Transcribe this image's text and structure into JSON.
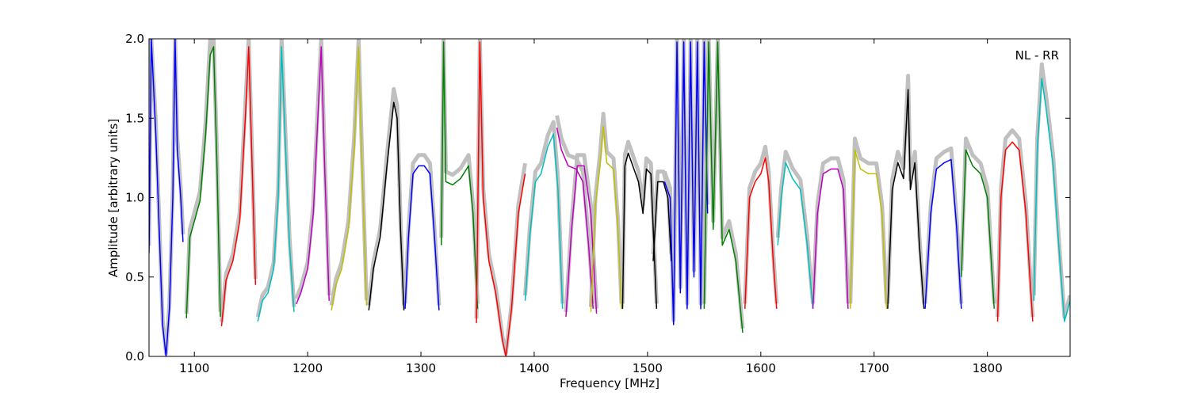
{
  "chart_data": {
    "type": "line",
    "xlabel": "Frequency [MHz]",
    "ylabel": "Amplitude [arbitrary units]",
    "xlim": [
      1060,
      1873
    ],
    "ylim": [
      0.0,
      2.0
    ],
    "x_ticks": [
      1100,
      1200,
      1300,
      1400,
      1500,
      1600,
      1700,
      1800
    ],
    "y_ticks": [
      0.0,
      0.5,
      1.0,
      1.5,
      2.0
    ],
    "y_tick_labels": [
      "0.0",
      "0.5",
      "1.0",
      "1.5",
      "2.0"
    ],
    "annotation": "NL - RR",
    "annotation_position": "top-right",
    "grid": false,
    "background_color": "#c0c0c0",
    "band_colors": [
      "#0000ff",
      "#008000",
      "#ff0000",
      "#00bfbf",
      "#bf00bf",
      "#bfbf00",
      "#000000"
    ],
    "bands": [
      {
        "color": "#0000ff",
        "points": [
          [
            1060,
            0.65
          ],
          [
            1062,
            2.0
          ],
          [
            1066,
            1.4
          ],
          [
            1069,
            0.8
          ],
          [
            1072,
            0.2
          ],
          [
            1075,
            0.0
          ],
          [
            1078,
            0.3
          ],
          [
            1081,
            1.0
          ],
          [
            1083,
            2.0
          ],
          [
            1085,
            1.3
          ],
          [
            1088,
            1.0
          ],
          [
            1090,
            0.72
          ]
        ]
      },
      {
        "color": "#008000",
        "points": [
          [
            1093,
            0.24
          ],
          [
            1096,
            0.75
          ],
          [
            1100,
            0.85
          ],
          [
            1105,
            0.98
          ],
          [
            1110,
            1.4
          ],
          [
            1114,
            1.9
          ],
          [
            1117,
            1.95
          ],
          [
            1120,
            1.2
          ],
          [
            1123,
            0.25
          ]
        ]
      },
      {
        "color": "#ff0000",
        "points": [
          [
            1124,
            0.19
          ],
          [
            1128,
            0.48
          ],
          [
            1134,
            0.6
          ],
          [
            1140,
            0.85
          ],
          [
            1145,
            1.5
          ],
          [
            1148,
            1.95
          ],
          [
            1151,
            1.2
          ],
          [
            1154,
            0.45
          ]
        ]
      },
      {
        "color": "#00bfbf",
        "points": [
          [
            1156,
            0.22
          ],
          [
            1160,
            0.35
          ],
          [
            1165,
            0.4
          ],
          [
            1170,
            0.55
          ],
          [
            1174,
            1.0
          ],
          [
            1177,
            1.95
          ],
          [
            1180,
            1.4
          ],
          [
            1184,
            0.7
          ],
          [
            1188,
            0.28
          ]
        ]
      },
      {
        "color": "#bf00bf",
        "points": [
          [
            1190,
            0.33
          ],
          [
            1194,
            0.4
          ],
          [
            1200,
            0.55
          ],
          [
            1205,
            0.9
          ],
          [
            1209,
            1.5
          ],
          [
            1212,
            1.95
          ],
          [
            1215,
            1.2
          ],
          [
            1219,
            0.35
          ]
        ]
      },
      {
        "color": "#bfbf00",
        "points": [
          [
            1221,
            0.29
          ],
          [
            1225,
            0.45
          ],
          [
            1230,
            0.55
          ],
          [
            1236,
            0.8
          ],
          [
            1241,
            1.3
          ],
          [
            1245,
            1.95
          ],
          [
            1248,
            1.2
          ],
          [
            1252,
            0.32
          ]
        ]
      },
      {
        "color": "#000000",
        "points": [
          [
            1254,
            0.29
          ],
          [
            1258,
            0.55
          ],
          [
            1264,
            0.75
          ],
          [
            1270,
            1.2
          ],
          [
            1276,
            1.6
          ],
          [
            1279,
            1.5
          ],
          [
            1282,
            0.8
          ],
          [
            1285,
            0.29
          ]
        ]
      },
      {
        "color": "#0000ff",
        "points": [
          [
            1286,
            0.3
          ],
          [
            1289,
            0.75
          ],
          [
            1293,
            1.15
          ],
          [
            1298,
            1.2
          ],
          [
            1303,
            1.2
          ],
          [
            1308,
            1.15
          ],
          [
            1312,
            0.75
          ],
          [
            1316,
            0.29
          ]
        ]
      },
      {
        "color": "#008000",
        "points": [
          [
            1318,
            0.7
          ],
          [
            1320,
            1.98
          ],
          [
            1322,
            1.1
          ],
          [
            1328,
            1.08
          ],
          [
            1335,
            1.12
          ],
          [
            1342,
            1.2
          ],
          [
            1346,
            0.9
          ],
          [
            1350,
            0.3
          ]
        ]
      },
      {
        "color": "#ff0000",
        "points": [
          [
            1349,
            0.21
          ],
          [
            1352,
            1.98
          ],
          [
            1355,
            1.0
          ],
          [
            1360,
            0.6
          ],
          [
            1366,
            0.4
          ],
          [
            1372,
            0.1
          ],
          [
            1375,
            0.0
          ],
          [
            1380,
            0.3
          ],
          [
            1386,
            0.9
          ],
          [
            1392,
            1.15
          ]
        ]
      },
      {
        "color": "#00bfbf",
        "points": [
          [
            1392,
            0.35
          ],
          [
            1396,
            0.75
          ],
          [
            1401,
            1.1
          ],
          [
            1406,
            1.15
          ],
          [
            1412,
            1.32
          ],
          [
            1417,
            1.4
          ],
          [
            1421,
            1.05
          ],
          [
            1425,
            0.3
          ]
        ]
      },
      {
        "color": "#bf00bf",
        "points": [
          [
            1420,
            1.44
          ],
          [
            1424,
            1.3
          ],
          [
            1430,
            1.2
          ],
          [
            1437,
            1.18
          ],
          [
            1443,
            1.1
          ],
          [
            1448,
            0.7
          ],
          [
            1452,
            0.3
          ]
        ]
      },
      {
        "color": "#bf00bf",
        "points": [
          [
            1428,
            0.25
          ],
          [
            1433,
            0.8
          ],
          [
            1438,
            1.2
          ],
          [
            1444,
            1.2
          ],
          [
            1450,
            0.9
          ],
          [
            1455,
            0.27
          ]
        ]
      },
      {
        "color": "#bfbf00",
        "points": [
          [
            1450,
            0.28
          ],
          [
            1454,
            0.95
          ],
          [
            1458,
            1.2
          ],
          [
            1461,
            1.45
          ],
          [
            1464,
            1.22
          ],
          [
            1470,
            1.18
          ],
          [
            1474,
            0.8
          ],
          [
            1477,
            0.3
          ]
        ]
      },
      {
        "color": "#000000",
        "points": [
          [
            1478,
            0.3
          ],
          [
            1480,
            1.2
          ],
          [
            1483,
            1.28
          ],
          [
            1487,
            1.2
          ],
          [
            1492,
            1.1
          ],
          [
            1496,
            0.9
          ],
          [
            1499,
            1.18
          ],
          [
            1503,
            1.15
          ],
          [
            1508,
            0.3
          ]
        ]
      },
      {
        "color": "#000000",
        "points": [
          [
            1505,
            0.6
          ],
          [
            1509,
            1.1
          ],
          [
            1514,
            1.1
          ],
          [
            1518,
            1.0
          ],
          [
            1521,
            0.6
          ]
        ]
      },
      {
        "color": "#0000ff",
        "points": [
          [
            1515,
            1.1
          ],
          [
            1520,
            1.0
          ],
          [
            1523,
            0.2
          ],
          [
            1526,
            1.98
          ],
          [
            1529,
            0.4
          ],
          [
            1532,
            1.98
          ],
          [
            1535,
            0.3
          ],
          [
            1538,
            1.98
          ],
          [
            1541,
            0.5
          ],
          [
            1544,
            1.98
          ],
          [
            1547,
            0.3
          ],
          [
            1550,
            1.98
          ],
          [
            1553,
            0.9
          ]
        ]
      },
      {
        "color": "#008000",
        "points": [
          [
            1550,
            0.3
          ],
          [
            1554,
            1.98
          ],
          [
            1558,
            0.8
          ],
          [
            1562,
            1.98
          ],
          [
            1566,
            0.7
          ],
          [
            1572,
            0.8
          ],
          [
            1578,
            0.6
          ],
          [
            1584,
            0.15
          ]
        ]
      },
      {
        "color": "#ff0000",
        "points": [
          [
            1586,
            0.3
          ],
          [
            1590,
            1.0
          ],
          [
            1595,
            1.1
          ],
          [
            1600,
            1.15
          ],
          [
            1604,
            1.25
          ],
          [
            1607,
            1.1
          ],
          [
            1611,
            0.6
          ],
          [
            1614,
            0.3
          ]
        ]
      },
      {
        "color": "#00bfbf",
        "points": [
          [
            1615,
            0.7
          ],
          [
            1618,
            1.0
          ],
          [
            1622,
            1.22
          ],
          [
            1628,
            1.12
          ],
          [
            1635,
            1.05
          ],
          [
            1641,
            0.7
          ],
          [
            1646,
            0.3
          ]
        ]
      },
      {
        "color": "#bf00bf",
        "points": [
          [
            1646,
            0.3
          ],
          [
            1650,
            0.9
          ],
          [
            1655,
            1.15
          ],
          [
            1662,
            1.18
          ],
          [
            1668,
            1.18
          ],
          [
            1673,
            1.05
          ],
          [
            1677,
            0.3
          ]
        ]
      },
      {
        "color": "#bfbf00",
        "points": [
          [
            1679,
            0.3
          ],
          [
            1683,
            1.3
          ],
          [
            1688,
            1.18
          ],
          [
            1695,
            1.15
          ],
          [
            1702,
            1.15
          ],
          [
            1707,
            0.9
          ],
          [
            1711,
            0.3
          ]
        ]
      },
      {
        "color": "#000000",
        "points": [
          [
            1712,
            0.3
          ],
          [
            1716,
            1.05
          ],
          [
            1721,
            1.22
          ],
          [
            1726,
            1.12
          ],
          [
            1730,
            1.68
          ],
          [
            1732,
            1.05
          ],
          [
            1736,
            1.22
          ],
          [
            1740,
            0.7
          ],
          [
            1744,
            0.3
          ]
        ]
      },
      {
        "color": "#0000ff",
        "points": [
          [
            1745,
            0.3
          ],
          [
            1750,
            0.9
          ],
          [
            1755,
            1.18
          ],
          [
            1762,
            1.22
          ],
          [
            1768,
            1.24
          ],
          [
            1773,
            0.8
          ],
          [
            1777,
            0.3
          ]
        ]
      },
      {
        "color": "#008000",
        "points": [
          [
            1777,
            0.5
          ],
          [
            1781,
            1.3
          ],
          [
            1787,
            1.2
          ],
          [
            1794,
            1.15
          ],
          [
            1800,
            1.0
          ],
          [
            1806,
            0.3
          ]
        ]
      },
      {
        "color": "#ff0000",
        "points": [
          [
            1809,
            0.22
          ],
          [
            1812,
            1.0
          ],
          [
            1816,
            1.3
          ],
          [
            1822,
            1.35
          ],
          [
            1828,
            1.3
          ],
          [
            1834,
            0.9
          ],
          [
            1840,
            0.22
          ]
        ]
      },
      {
        "color": "#00bfbf",
        "points": [
          [
            1841,
            0.35
          ],
          [
            1844,
            1.3
          ],
          [
            1848,
            1.75
          ],
          [
            1852,
            1.55
          ],
          [
            1858,
            1.2
          ],
          [
            1864,
            0.6
          ],
          [
            1868,
            0.22
          ],
          [
            1873,
            0.35
          ]
        ]
      }
    ]
  }
}
